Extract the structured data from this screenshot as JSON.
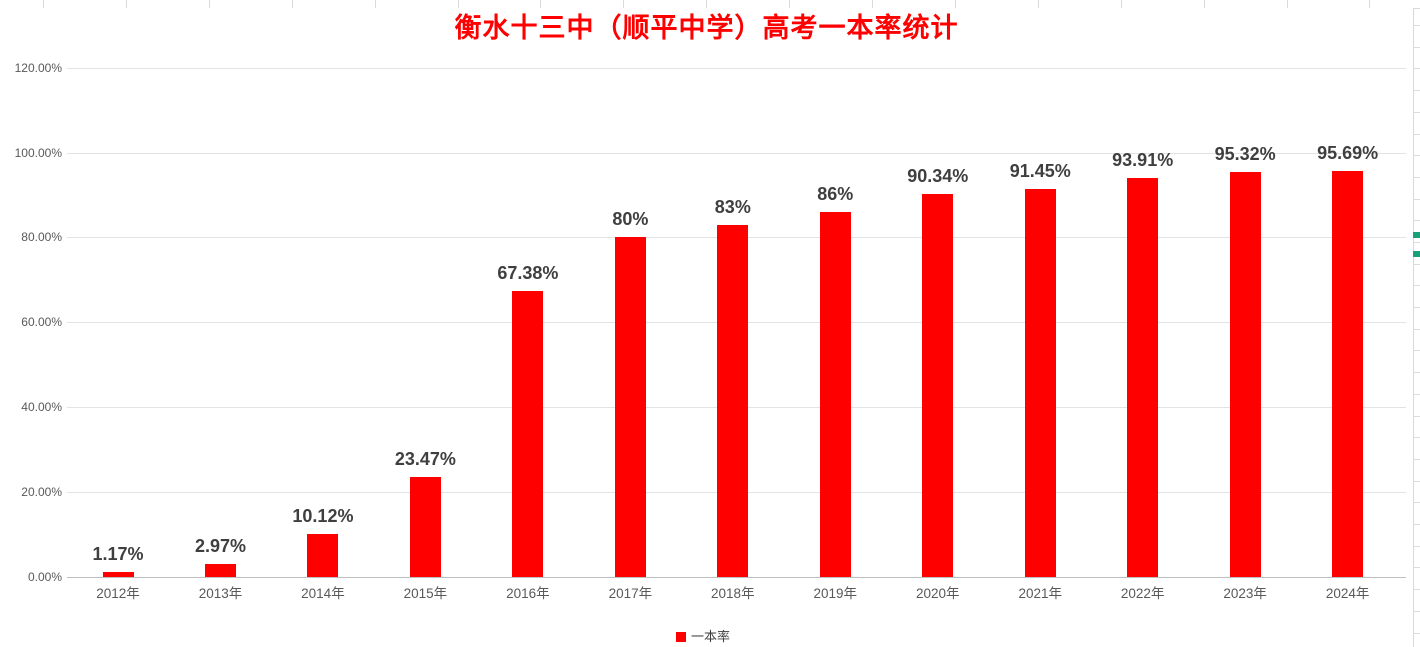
{
  "app": {
    "context_label": "spreadsheet-embedded-chart"
  },
  "chart_data": {
    "type": "bar",
    "title": "衡水十三中（顺平中学）高考一本率统计",
    "categories": [
      "2012年",
      "2013年",
      "2014年",
      "2015年",
      "2016年",
      "2017年",
      "2018年",
      "2019年",
      "2020年",
      "2021年",
      "2022年",
      "2023年",
      "2024年"
    ],
    "series": [
      {
        "name": "一本率",
        "values": [
          1.17,
          2.97,
          10.12,
          23.47,
          67.38,
          80,
          83,
          86,
          90.34,
          91.45,
          93.91,
          95.32,
          95.69
        ],
        "value_labels": [
          "1.17%",
          "2.97%",
          "10.12%",
          "23.47%",
          "67.38%",
          "80%",
          "83%",
          "86%",
          "90.34%",
          "91.45%",
          "93.91%",
          "95.32%",
          "95.69%"
        ],
        "color": "#FF0000"
      }
    ],
    "xlabel": "",
    "ylabel": "",
    "ylim": [
      0,
      120
    ],
    "ytick_step": 20,
    "ytick_labels": [
      "0.00%",
      "20.00%",
      "40.00%",
      "60.00%",
      "80.00%",
      "100.00%",
      "120.00%"
    ],
    "grid": true,
    "legend_position": "bottom-center"
  },
  "colors": {
    "bar": "#FF0000",
    "title": "#FF0000",
    "data_label": "#3F3F3F",
    "axis_label": "#595959",
    "gridline": "#E3E3E3",
    "axis_line": "#BFBFBF",
    "cell_border": "#D9D9D9",
    "green_cell_marker": "#18A07A"
  }
}
